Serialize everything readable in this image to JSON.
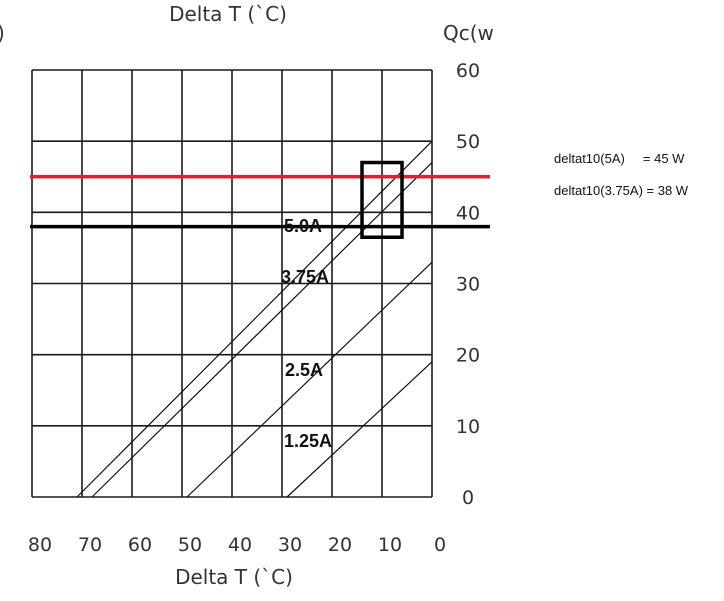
{
  "chart_data": {
    "type": "line",
    "title": "",
    "top_axis_label": "Delta  T (`C)",
    "xlabel": "Delta  T (`C)",
    "ylabel": "Qc(w",
    "left_edge_fragment": ")",
    "x_reversed": true,
    "xlim": [
      80,
      0
    ],
    "ylim": [
      0,
      60
    ],
    "x_ticks": [
      "80",
      "70",
      "60",
      "50",
      "40",
      "30",
      "20",
      "10",
      "0"
    ],
    "y_ticks": [
      "0",
      "10",
      "20",
      "30",
      "40",
      "50",
      "60"
    ],
    "grid": true,
    "series": [
      {
        "name": "5.0A",
        "x": [
          71,
          0
        ],
        "y": [
          0,
          50
        ]
      },
      {
        "name": "3.75A",
        "x": [
          68,
          0
        ],
        "y": [
          0,
          47
        ]
      },
      {
        "name": "2.5A",
        "x": [
          49,
          0
        ],
        "y": [
          0,
          33
        ]
      },
      {
        "name": "1.25A",
        "x": [
          29,
          0
        ],
        "y": [
          0,
          19
        ]
      }
    ],
    "reference_lines": [
      {
        "y": 45,
        "color": "#e0202a"
      },
      {
        "y": 38,
        "color": "#000000"
      }
    ],
    "highlight_box": {
      "x": [
        14,
        6
      ],
      "y": [
        36.5,
        47
      ]
    },
    "annotations": [
      "deltat10(5A)     = 45 W",
      "deltat10(3.75A) = 38 W"
    ]
  }
}
